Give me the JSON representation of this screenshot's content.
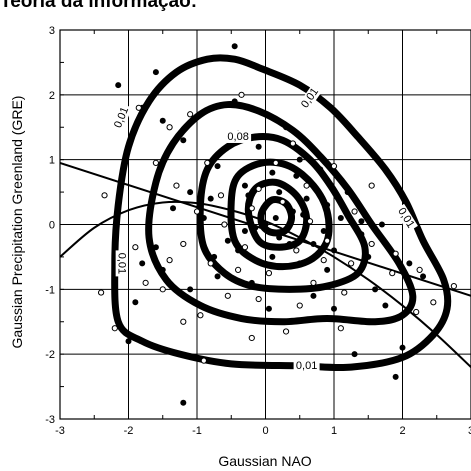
{
  "header": {
    "caption": "Teoria da informação:"
  },
  "chart_data": {
    "type": "scatter",
    "title": "",
    "xlabel": "Gaussian NAO",
    "ylabel": "Gaussian Precipitation Greenland (GRE)",
    "xlim": [
      -3,
      3
    ],
    "ylim": [
      -3,
      3
    ],
    "xticks": [
      "-3",
      "-2",
      "-1",
      "0",
      "1",
      "2",
      "3"
    ],
    "yticks": [
      "-3",
      "-2",
      "-1",
      "0",
      "1",
      "2",
      "3"
    ],
    "grid": true,
    "contour_labels": [
      {
        "text": "0,01",
        "x": -2.1,
        "y": 1.65,
        "angle": -68
      },
      {
        "text": "0,01",
        "x": 0.65,
        "y": 1.95,
        "angle": -55
      },
      {
        "text": "0,08",
        "x": -0.4,
        "y": 1.35,
        "angle": 0
      },
      {
        "text": "0,01",
        "x": 2.05,
        "y": 0.1,
        "angle": 58
      },
      {
        "text": "0,01",
        "x": -2.1,
        "y": -0.6,
        "angle": 90
      },
      {
        "text": "0,01",
        "x": 0.6,
        "y": -2.18,
        "angle": 0
      }
    ],
    "contours": [
      {
        "level": "0.01",
        "points": [
          [
            -2.15,
            -1.5
          ],
          [
            -2.2,
            -0.6
          ],
          [
            -2.15,
            0.3
          ],
          [
            -2.0,
            1.2
          ],
          [
            -1.7,
            1.9
          ],
          [
            -1.3,
            2.35
          ],
          [
            -0.85,
            2.55
          ],
          [
            -0.45,
            2.55
          ],
          [
            -0.05,
            2.4
          ],
          [
            0.5,
            2.15
          ],
          [
            0.95,
            1.8
          ],
          [
            1.35,
            1.35
          ],
          [
            1.75,
            0.85
          ],
          [
            2.05,
            0.35
          ],
          [
            2.3,
            -0.25
          ],
          [
            2.6,
            -0.85
          ],
          [
            2.65,
            -1.3
          ],
          [
            2.45,
            -1.7
          ],
          [
            2.0,
            -2.05
          ],
          [
            1.25,
            -2.2
          ],
          [
            0.5,
            -2.18
          ],
          [
            -0.5,
            -2.15
          ],
          [
            -1.25,
            -2.0
          ],
          [
            -1.8,
            -1.8
          ]
        ]
      },
      {
        "level": "0.03",
        "points": [
          [
            -1.7,
            -0.2
          ],
          [
            -1.6,
            0.65
          ],
          [
            -1.35,
            1.25
          ],
          [
            -0.95,
            1.7
          ],
          [
            -0.55,
            1.85
          ],
          [
            -0.1,
            1.75
          ],
          [
            0.4,
            1.45
          ],
          [
            0.8,
            1.05
          ],
          [
            1.2,
            0.55
          ],
          [
            1.55,
            0.0
          ],
          [
            1.95,
            -0.6
          ],
          [
            2.15,
            -1.1
          ],
          [
            2.0,
            -1.4
          ],
          [
            1.6,
            -1.5
          ],
          [
            0.9,
            -1.45
          ],
          [
            0.25,
            -1.5
          ],
          [
            -0.35,
            -1.45
          ],
          [
            -0.95,
            -1.25
          ],
          [
            -1.45,
            -0.85
          ]
        ]
      },
      {
        "level": "0.08",
        "points": [
          [
            -0.95,
            0.3
          ],
          [
            -0.85,
            0.85
          ],
          [
            -0.55,
            1.2
          ],
          [
            -0.15,
            1.35
          ],
          [
            0.25,
            1.3
          ],
          [
            0.65,
            1.0
          ],
          [
            0.95,
            0.6
          ],
          [
            1.2,
            0.15
          ],
          [
            1.45,
            -0.35
          ],
          [
            1.35,
            -0.75
          ],
          [
            0.9,
            -0.95
          ],
          [
            0.35,
            -1.0
          ],
          [
            -0.2,
            -0.95
          ],
          [
            -0.6,
            -0.75
          ],
          [
            -0.9,
            -0.35
          ]
        ]
      },
      {
        "level": "inner-1",
        "points": [
          [
            -0.5,
            0.35
          ],
          [
            -0.4,
            0.75
          ],
          [
            -0.05,
            0.95
          ],
          [
            0.35,
            0.9
          ],
          [
            0.7,
            0.6
          ],
          [
            0.9,
            0.2
          ],
          [
            0.9,
            -0.25
          ],
          [
            0.65,
            -0.55
          ],
          [
            0.25,
            -0.65
          ],
          [
            -0.15,
            -0.55
          ],
          [
            -0.45,
            -0.25
          ]
        ]
      },
      {
        "level": "inner-2",
        "points": [
          [
            -0.25,
            0.2
          ],
          [
            -0.15,
            0.55
          ],
          [
            0.15,
            0.65
          ],
          [
            0.45,
            0.45
          ],
          [
            0.6,
            0.1
          ],
          [
            0.5,
            -0.25
          ],
          [
            0.2,
            -0.35
          ],
          [
            -0.1,
            -0.25
          ]
        ]
      },
      {
        "level": "inner-3",
        "points": [
          [
            -0.05,
            0.2
          ],
          [
            0.1,
            0.38
          ],
          [
            0.3,
            0.32
          ],
          [
            0.38,
            0.1
          ],
          [
            0.28,
            -0.1
          ],
          [
            0.08,
            -0.12
          ],
          [
            -0.05,
            0.0
          ]
        ]
      }
    ],
    "series": [
      {
        "points_filled": [
          [
            -2.15,
            2.15
          ],
          [
            -1.6,
            2.35
          ],
          [
            -1.8,
            1.8
          ],
          [
            -1.5,
            1.6
          ],
          [
            -1.2,
            1.3
          ],
          [
            -0.7,
            0.9
          ],
          [
            -0.4,
            1.4
          ],
          [
            -0.1,
            1.2
          ],
          [
            0.3,
            1.5
          ],
          [
            0.5,
            1.0
          ],
          [
            0.8,
            0.85
          ],
          [
            0.1,
            0.8
          ],
          [
            -0.3,
            0.6
          ],
          [
            0.2,
            0.5
          ],
          [
            0.6,
            0.4
          ],
          [
            0.9,
            0.3
          ],
          [
            1.2,
            0.5
          ],
          [
            1.1,
            0.1
          ],
          [
            1.4,
            0.05
          ],
          [
            1.7,
            0.0
          ],
          [
            0.4,
            0.2
          ],
          [
            0.0,
            0.3
          ],
          [
            -0.5,
            0.2
          ],
          [
            -0.8,
            0.4
          ],
          [
            -1.1,
            0.5
          ],
          [
            -0.9,
            0.1
          ],
          [
            -0.3,
            -0.1
          ],
          [
            0.2,
            -0.2
          ],
          [
            0.7,
            -0.3
          ],
          [
            1.0,
            -0.4
          ],
          [
            1.5,
            -0.5
          ],
          [
            2.1,
            -0.6
          ],
          [
            2.3,
            -0.8
          ],
          [
            -0.4,
            -0.4
          ],
          [
            0.1,
            -0.5
          ],
          [
            0.5,
            -0.6
          ],
          [
            0.9,
            -0.7
          ],
          [
            1.3,
            -0.8
          ],
          [
            1.6,
            -1.0
          ],
          [
            -0.7,
            -0.8
          ],
          [
            -0.2,
            -0.9
          ],
          [
            0.3,
            -1.0
          ],
          [
            0.7,
            -1.1
          ],
          [
            1.0,
            -1.3
          ],
          [
            -1.1,
            -1.0
          ],
          [
            -1.5,
            -0.7
          ],
          [
            -1.8,
            -0.6
          ],
          [
            -1.9,
            -1.2
          ],
          [
            -2.0,
            -1.8
          ],
          [
            -1.2,
            -2.75
          ],
          [
            1.3,
            -2.0
          ],
          [
            1.9,
            -2.35
          ],
          [
            2.0,
            -1.9
          ],
          [
            -0.45,
            2.75
          ],
          [
            -1.35,
            0.25
          ],
          [
            -1.6,
            -0.35
          ],
          [
            0.0,
            0.0
          ],
          [
            0.15,
            0.1
          ],
          [
            -0.15,
            -0.05
          ],
          [
            0.35,
            -0.3
          ],
          [
            -0.55,
            -0.25
          ],
          [
            0.55,
            0.15
          ],
          [
            1.4,
            -0.15
          ],
          [
            0.85,
            -0.1
          ],
          [
            -0.25,
            0.45
          ],
          [
            0.45,
            0.75
          ],
          [
            -0.75,
            -0.5
          ],
          [
            1.75,
            -1.25
          ],
          [
            0.05,
            -1.3
          ],
          [
            -0.45,
            1.9
          ]
        ]
      },
      {
        "points_open": [
          [
            -2.35,
            0.45
          ],
          [
            -2.4,
            -1.05
          ],
          [
            -1.85,
            1.8
          ],
          [
            -1.4,
            1.5
          ],
          [
            -1.1,
            1.7
          ],
          [
            -0.35,
            2.0
          ],
          [
            -0.5,
            1.3
          ],
          [
            -0.85,
            0.95
          ],
          [
            -1.3,
            0.6
          ],
          [
            -1.0,
            0.2
          ],
          [
            -0.6,
            0.0
          ],
          [
            -0.2,
            0.25
          ],
          [
            0.25,
            0.35
          ],
          [
            0.6,
            0.6
          ],
          [
            1.0,
            0.9
          ],
          [
            1.3,
            0.2
          ],
          [
            1.55,
            -0.3
          ],
          [
            1.9,
            -0.45
          ],
          [
            2.25,
            -0.7
          ],
          [
            2.45,
            -1.2
          ],
          [
            2.2,
            -1.35
          ],
          [
            -1.2,
            -0.3
          ],
          [
            -0.8,
            -0.6
          ],
          [
            -0.4,
            -0.7
          ],
          [
            0.05,
            -0.75
          ],
          [
            0.45,
            -0.4
          ],
          [
            0.85,
            -0.55
          ],
          [
            1.25,
            -0.6
          ],
          [
            1.15,
            -1.05
          ],
          [
            0.5,
            -1.25
          ],
          [
            -0.1,
            -1.15
          ],
          [
            -0.55,
            -1.1
          ],
          [
            -0.95,
            -1.4
          ],
          [
            -1.5,
            -1.0
          ],
          [
            -1.75,
            -0.9
          ],
          [
            -1.9,
            -0.35
          ],
          [
            -1.6,
            0.95
          ],
          [
            -1.2,
            -1.5
          ],
          [
            -0.2,
            -1.75
          ],
          [
            0.3,
            -1.65
          ],
          [
            1.1,
            -1.6
          ],
          [
            -0.9,
            -2.1
          ],
          [
            0.7,
            -0.9
          ],
          [
            -0.65,
            0.45
          ],
          [
            0.9,
            -0.25
          ],
          [
            0.15,
            0.95
          ],
          [
            -0.3,
            -0.35
          ],
          [
            1.55,
            0.6
          ],
          [
            1.85,
            -0.75
          ],
          [
            -2.2,
            -1.6
          ],
          [
            2.75,
            -0.95
          ],
          [
            -0.1,
            0.55
          ],
          [
            0.65,
            0.05
          ],
          [
            -1.4,
            -0.55
          ],
          [
            0.4,
            1.25
          ]
        ]
      }
    ],
    "lines": [
      {
        "name": "linear-fit",
        "points": [
          [
            -3,
            0.95
          ],
          [
            3,
            -1.1
          ]
        ]
      },
      {
        "name": "curve-fit",
        "points": [
          [
            -3,
            -0.5
          ],
          [
            -2.5,
            -0.05
          ],
          [
            -2,
            0.22
          ],
          [
            -1.5,
            0.34
          ],
          [
            -1,
            0.33
          ],
          [
            -0.5,
            0.22
          ],
          [
            0,
            0.05
          ],
          [
            0.5,
            -0.2
          ],
          [
            1,
            -0.5
          ],
          [
            1.5,
            -0.85
          ],
          [
            2,
            -1.25
          ],
          [
            2.5,
            -1.7
          ],
          [
            3,
            -2.2
          ]
        ]
      }
    ]
  }
}
